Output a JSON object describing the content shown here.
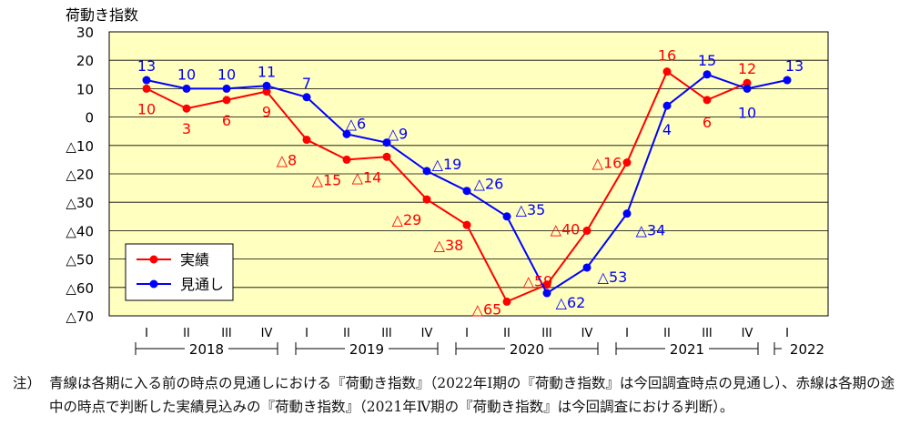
{
  "chart_data": {
    "type": "line",
    "title": "荷動き指数",
    "ylim": [
      -70,
      30
    ],
    "yticks": [
      30,
      20,
      10,
      0,
      -10,
      -20,
      -30,
      -40,
      -50,
      -60,
      -70
    ],
    "ytick_labels": [
      "30",
      "20",
      "10",
      "0",
      "△10",
      "△20",
      "△30",
      "△40",
      "△50",
      "△60",
      "△70"
    ],
    "grid": true,
    "plot_background": "#FFFFC0",
    "legend_position": "lower-left",
    "categories": [
      "I",
      "II",
      "III",
      "IV",
      "I",
      "II",
      "III",
      "IV",
      "I",
      "II",
      "III",
      "IV",
      "I",
      "II",
      "III",
      "IV",
      "I"
    ],
    "year_groups": [
      {
        "label": "2018",
        "start": 0,
        "end": 3
      },
      {
        "label": "2019",
        "start": 4,
        "end": 7
      },
      {
        "label": "2020",
        "start": 8,
        "end": 11
      },
      {
        "label": "2021",
        "start": 12,
        "end": 15
      },
      {
        "label": "2022",
        "start": 16,
        "end": 16
      }
    ],
    "series": [
      {
        "name": "実績",
        "color": "#FF0000",
        "values": [
          10,
          3,
          6,
          9,
          -8,
          -15,
          -14,
          -29,
          -38,
          -65,
          -59,
          -40,
          -16,
          16,
          6,
          12,
          null
        ],
        "labels": [
          "10",
          "3",
          "6",
          "9",
          "△8",
          "△15",
          "△14",
          "△29",
          "△38",
          "△65",
          "△59",
          "△40",
          "△16",
          "16",
          "6",
          "12",
          ""
        ]
      },
      {
        "name": "見通し",
        "color": "#0000FF",
        "values": [
          13,
          10,
          10,
          11,
          7,
          -6,
          -9,
          -19,
          -26,
          -35,
          -62,
          -53,
          -34,
          4,
          15,
          10,
          13
        ],
        "labels": [
          "13",
          "10",
          "10",
          "11",
          "7",
          "△6",
          "△9",
          "△19",
          "△26",
          "△35",
          "△62",
          "△53",
          "△34",
          "4",
          "15",
          "10",
          "13"
        ]
      }
    ]
  },
  "note": {
    "label": "注）",
    "text": "青線は各期に入る前の時点の見通しにおける『荷動き指数』（2022年Ⅰ期の『荷動き指数』は今回調査時点の見通し）、赤線は各期の途中の時点で判断した実績見込みの『荷動き指数』（2021年Ⅳ期の『荷動き指数』は今回調査における判断）。"
  }
}
